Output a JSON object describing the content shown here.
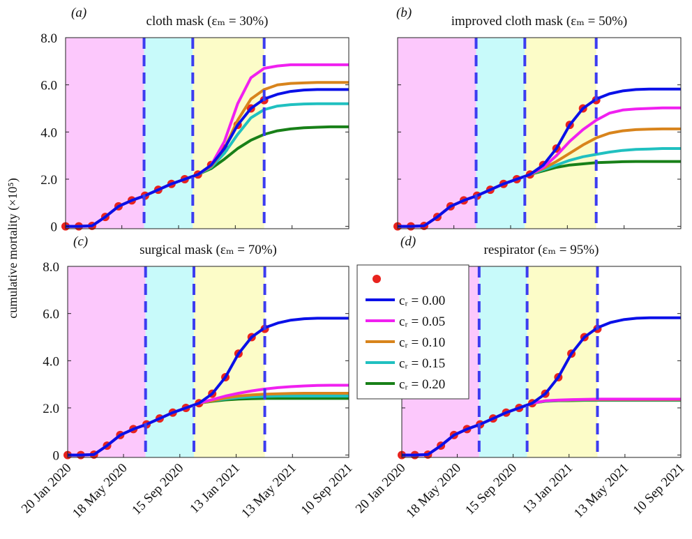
{
  "chart_data": [
    {
      "type": "line",
      "panel": "(a)",
      "title": "cloth mask (εₘ = 30%)",
      "y_label": "cumulative mortality (×10⁵)",
      "x": [
        "20 Jan 2020",
        "17 Feb 2020",
        "16 Mar 2020",
        "13 Apr 2020",
        "11 May 2020",
        "8 Jun 2020",
        "6 Jul 2020",
        "3 Aug 2020",
        "31 Aug 2020",
        "28 Sep 2020",
        "26 Oct 2020",
        "23 Nov 2020",
        "21 Dec 2020",
        "18 Jan 2021",
        "15 Feb 2021",
        "15 Mar 2021",
        "12 Apr 2021",
        "10 May 2021",
        "7 Jun 2021",
        "5 Jul 2021",
        "2 Aug 2021",
        "30 Aug 2021",
        "10 Sep 2021"
      ],
      "xlim": [
        "20 Jan 2020",
        "10 Sep 2021"
      ],
      "xticks": [
        "20 Jan 2020",
        "18 May 2020",
        "15 Sep 2020",
        "13 Jan 2021",
        "13 May 2021",
        "10 Sep 2021"
      ],
      "xtick_labels": false,
      "ylim": [
        -0.1,
        8
      ],
      "yticks": [
        0,
        {
          "value": 2,
          "label": "2.0"
        },
        {
          "value": 4,
          "label": "4.0"
        },
        {
          "value": 6,
          "label": "6.0"
        },
        {
          "value": 8,
          "label": "8.0"
        }
      ],
      "ytick_labels": true,
      "phase_boundaries": [
        "4 Jul 2020",
        "15 Oct 2020",
        "15 Mar 2021"
      ],
      "phase_colors": [
        "#fcc8fc",
        "#c8fafa",
        "#fcfcc8"
      ],
      "boundary_color": "#3c3cf0",
      "series": [
        {
          "color": "#e8231e",
          "style": "markers",
          "values": [
            0,
            0,
            0.02,
            0.4,
            0.85,
            1.1,
            1.3,
            1.55,
            1.8,
            2.0,
            2.2,
            2.6,
            3.3,
            4.3,
            5.0,
            5.35,
            null,
            null,
            null,
            null,
            null,
            null,
            null
          ]
        },
        {
          "color": "#0a10e8",
          "style": "line",
          "values": [
            0,
            0,
            0.02,
            0.4,
            0.85,
            1.1,
            1.3,
            1.55,
            1.8,
            2.0,
            2.2,
            2.6,
            3.3,
            4.3,
            5.0,
            5.4,
            5.6,
            5.72,
            5.78,
            5.8,
            5.8,
            5.8,
            5.8
          ]
        },
        {
          "color": "#f020f0",
          "style": "line",
          "values": [
            0,
            0,
            0.02,
            0.4,
            0.85,
            1.1,
            1.3,
            1.55,
            1.8,
            2.0,
            2.2,
            2.6,
            3.6,
            5.2,
            6.3,
            6.7,
            6.8,
            6.85,
            6.85,
            6.85,
            6.85,
            6.85,
            6.85
          ]
        },
        {
          "color": "#d8841c",
          "style": "line",
          "values": [
            0,
            0,
            0.02,
            0.4,
            0.85,
            1.1,
            1.3,
            1.55,
            1.8,
            2.0,
            2.2,
            2.55,
            3.3,
            4.5,
            5.4,
            5.8,
            6.0,
            6.06,
            6.08,
            6.1,
            6.1,
            6.1,
            6.1
          ]
        },
        {
          "color": "#20c0c0",
          "style": "line",
          "values": [
            0,
            0,
            0.02,
            0.4,
            0.85,
            1.1,
            1.3,
            1.55,
            1.8,
            2.0,
            2.2,
            2.5,
            3.1,
            3.9,
            4.6,
            4.95,
            5.1,
            5.16,
            5.19,
            5.2,
            5.2,
            5.2,
            5.2
          ]
        },
        {
          "color": "#188018",
          "style": "line",
          "values": [
            0,
            0,
            0.02,
            0.4,
            0.85,
            1.1,
            1.3,
            1.55,
            1.8,
            2.0,
            2.2,
            2.45,
            2.85,
            3.3,
            3.65,
            3.9,
            4.05,
            4.13,
            4.18,
            4.2,
            4.22,
            4.22,
            4.22
          ]
        }
      ]
    },
    {
      "type": "line",
      "panel": "(b)",
      "title": "improved cloth mask (εₘ = 50%)",
      "x": [
        "20 Jan 2020",
        "17 Feb 2020",
        "16 Mar 2020",
        "13 Apr 2020",
        "11 May 2020",
        "8 Jun 2020",
        "6 Jul 2020",
        "3 Aug 2020",
        "31 Aug 2020",
        "28 Sep 2020",
        "26 Oct 2020",
        "23 Nov 2020",
        "21 Dec 2020",
        "18 Jan 2021",
        "15 Feb 2021",
        "15 Mar 2021",
        "12 Apr 2021",
        "10 May 2021",
        "7 Jun 2021",
        "5 Jul 2021",
        "2 Aug 2021",
        "30 Aug 2021",
        "10 Sep 2021"
      ],
      "xlim": [
        "20 Jan 2020",
        "10 Sep 2021"
      ],
      "xticks": [
        "20 Jan 2020",
        "18 May 2020",
        "15 Sep 2020",
        "13 Jan 2021",
        "13 May 2021",
        "10 Sep 2021"
      ],
      "xtick_labels": false,
      "ylim": [
        -0.1,
        8
      ],
      "yticks": [
        0,
        {
          "value": 2,
          "label": "2.0"
        },
        {
          "value": 4,
          "label": "4.0"
        },
        {
          "value": 6,
          "label": "6.0"
        },
        {
          "value": 8,
          "label": "8.0"
        }
      ],
      "ytick_labels": false,
      "phase_boundaries": [
        "4 Jul 2020",
        "15 Oct 2020",
        "15 Mar 2021"
      ],
      "phase_colors": [
        "#fcc8fc",
        "#c8fafa",
        "#fcfcc8"
      ],
      "boundary_color": "#3c3cf0",
      "series": [
        {
          "color": "#e8231e",
          "style": "markers",
          "values": [
            0,
            0,
            0.02,
            0.4,
            0.85,
            1.1,
            1.3,
            1.55,
            1.8,
            2.0,
            2.2,
            2.6,
            3.3,
            4.3,
            5.0,
            5.35,
            null,
            null,
            null,
            null,
            null,
            null,
            null
          ]
        },
        {
          "color": "#0a10e8",
          "style": "line",
          "values": [
            0,
            0,
            0.02,
            0.4,
            0.85,
            1.1,
            1.3,
            1.55,
            1.8,
            2.0,
            2.2,
            2.6,
            3.3,
            4.3,
            5.0,
            5.4,
            5.62,
            5.74,
            5.8,
            5.82,
            5.82,
            5.82,
            5.82
          ]
        },
        {
          "color": "#f020f0",
          "style": "line",
          "values": [
            0,
            0,
            0.02,
            0.4,
            0.85,
            1.1,
            1.3,
            1.55,
            1.8,
            2.0,
            2.2,
            2.5,
            3.0,
            3.6,
            4.1,
            4.5,
            4.8,
            4.93,
            4.98,
            5.0,
            5.02,
            5.02,
            5.02
          ]
        },
        {
          "color": "#d8841c",
          "style": "line",
          "values": [
            0,
            0,
            0.02,
            0.4,
            0.85,
            1.1,
            1.3,
            1.55,
            1.8,
            2.0,
            2.2,
            2.45,
            2.75,
            3.1,
            3.45,
            3.75,
            3.95,
            4.05,
            4.1,
            4.12,
            4.13,
            4.13,
            4.13
          ]
        },
        {
          "color": "#20c0c0",
          "style": "line",
          "values": [
            0,
            0,
            0.02,
            0.4,
            0.85,
            1.1,
            1.3,
            1.55,
            1.8,
            2.0,
            2.2,
            2.4,
            2.6,
            2.8,
            2.95,
            3.05,
            3.15,
            3.22,
            3.26,
            3.28,
            3.3,
            3.3,
            3.3
          ]
        },
        {
          "color": "#188018",
          "style": "line",
          "values": [
            0,
            0,
            0.02,
            0.4,
            0.85,
            1.1,
            1.3,
            1.55,
            1.8,
            2.0,
            2.2,
            2.35,
            2.5,
            2.6,
            2.65,
            2.7,
            2.72,
            2.74,
            2.75,
            2.75,
            2.75,
            2.75,
            2.75
          ]
        }
      ]
    },
    {
      "type": "line",
      "panel": "(c)",
      "title": "surgical mask (εₘ = 70%)",
      "x": [
        "20 Jan 2020",
        "17 Feb 2020",
        "16 Mar 2020",
        "13 Apr 2020",
        "11 May 2020",
        "8 Jun 2020",
        "6 Jul 2020",
        "3 Aug 2020",
        "31 Aug 2020",
        "28 Sep 2020",
        "26 Oct 2020",
        "23 Nov 2020",
        "21 Dec 2020",
        "18 Jan 2021",
        "15 Feb 2021",
        "15 Mar 2021",
        "12 Apr 2021",
        "10 May 2021",
        "7 Jun 2021",
        "5 Jul 2021",
        "2 Aug 2021",
        "30 Aug 2021",
        "10 Sep 2021"
      ],
      "xlim": [
        "20 Jan 2020",
        "10 Sep 2021"
      ],
      "xticks": [
        "20 Jan 2020",
        "18 May 2020",
        "15 Sep 2020",
        "13 Jan 2021",
        "13 May 2021",
        "10 Sep 2021"
      ],
      "xtick_labels": true,
      "ylim": [
        -0.1,
        8
      ],
      "yticks": [
        0,
        {
          "value": 2,
          "label": "2.0"
        },
        {
          "value": 4,
          "label": "4.0"
        },
        {
          "value": 6,
          "label": "6.0"
        },
        {
          "value": 8,
          "label": "8.0"
        }
      ],
      "ytick_labels": true,
      "phase_boundaries": [
        "4 Jul 2020",
        "15 Oct 2020",
        "15 Mar 2021"
      ],
      "phase_colors": [
        "#fcc8fc",
        "#c8fafa",
        "#fcfcc8"
      ],
      "boundary_color": "#3c3cf0",
      "series": [
        {
          "color": "#e8231e",
          "style": "markers",
          "values": [
            0,
            0,
            0.02,
            0.4,
            0.85,
            1.1,
            1.3,
            1.55,
            1.8,
            2.0,
            2.2,
            2.6,
            3.3,
            4.3,
            5.0,
            5.35,
            null,
            null,
            null,
            null,
            null,
            null,
            null
          ]
        },
        {
          "color": "#0a10e8",
          "style": "line",
          "values": [
            0,
            0,
            0.02,
            0.4,
            0.85,
            1.1,
            1.3,
            1.55,
            1.8,
            2.0,
            2.2,
            2.6,
            3.3,
            4.3,
            5.0,
            5.4,
            5.6,
            5.72,
            5.78,
            5.8,
            5.8,
            5.8,
            5.8
          ]
        },
        {
          "color": "#f020f0",
          "style": "line",
          "values": [
            0,
            0,
            0.02,
            0.4,
            0.85,
            1.1,
            1.3,
            1.55,
            1.8,
            2.0,
            2.2,
            2.35,
            2.5,
            2.62,
            2.72,
            2.8,
            2.86,
            2.9,
            2.93,
            2.95,
            2.96,
            2.96,
            2.96
          ]
        },
        {
          "color": "#d8841c",
          "style": "line",
          "values": [
            0,
            0,
            0.02,
            0.4,
            0.85,
            1.1,
            1.3,
            1.55,
            1.8,
            2.0,
            2.2,
            2.3,
            2.42,
            2.5,
            2.55,
            2.58,
            2.6,
            2.61,
            2.62,
            2.62,
            2.62,
            2.62,
            2.62
          ]
        },
        {
          "color": "#20c0c0",
          "style": "line",
          "values": [
            0,
            0,
            0.02,
            0.4,
            0.85,
            1.1,
            1.3,
            1.55,
            1.8,
            2.0,
            2.2,
            2.3,
            2.38,
            2.44,
            2.47,
            2.49,
            2.5,
            2.5,
            2.5,
            2.5,
            2.5,
            2.5,
            2.5
          ]
        },
        {
          "color": "#188018",
          "style": "line",
          "values": [
            0,
            0,
            0.02,
            0.4,
            0.85,
            1.1,
            1.3,
            1.55,
            1.8,
            2.0,
            2.2,
            2.28,
            2.34,
            2.37,
            2.39,
            2.4,
            2.4,
            2.4,
            2.4,
            2.4,
            2.4,
            2.4,
            2.4
          ]
        }
      ]
    },
    {
      "type": "line",
      "panel": "(d)",
      "title": "respirator (εₘ = 95%)",
      "legend": "upper left",
      "x": [
        "20 Jan 2020",
        "17 Feb 2020",
        "16 Mar 2020",
        "13 Apr 2020",
        "11 May 2020",
        "8 Jun 2020",
        "6 Jul 2020",
        "3 Aug 2020",
        "31 Aug 2020",
        "28 Sep 2020",
        "26 Oct 2020",
        "23 Nov 2020",
        "21 Dec 2020",
        "18 Jan 2021",
        "15 Feb 2021",
        "15 Mar 2021",
        "12 Apr 2021",
        "10 May 2021",
        "7 Jun 2021",
        "5 Jul 2021",
        "2 Aug 2021",
        "30 Aug 2021",
        "10 Sep 2021"
      ],
      "xlim": [
        "20 Jan 2020",
        "10 Sep 2021"
      ],
      "xticks": [
        "20 Jan 2020",
        "18 May 2020",
        "15 Sep 2020",
        "13 Jan 2021",
        "13 May 2021",
        "10 Sep 2021"
      ],
      "xtick_labels": true,
      "ylim": [
        -0.1,
        8
      ],
      "yticks": [
        0,
        {
          "value": 2,
          "label": "2.0"
        },
        {
          "value": 4,
          "label": "4.0"
        },
        {
          "value": 6,
          "label": "6.0"
        },
        {
          "value": 8,
          "label": "8.0"
        }
      ],
      "ytick_labels": false,
      "phase_boundaries": [
        "4 Jul 2020",
        "15 Oct 2020",
        "15 Mar 2021"
      ],
      "phase_colors": [
        "#fcc8fc",
        "#c8fafa",
        "#fcfcc8"
      ],
      "boundary_color": "#3c3cf0",
      "series": [
        {
          "color": "#e8231e",
          "style": "markers",
          "values": [
            0,
            0,
            0.02,
            0.4,
            0.85,
            1.1,
            1.3,
            1.55,
            1.8,
            2.0,
            2.2,
            2.6,
            3.3,
            4.3,
            5.0,
            5.35,
            null,
            null,
            null,
            null,
            null,
            null,
            null
          ]
        },
        {
          "name": "cᵣ = 0.00",
          "color": "#0a10e8",
          "style": "line",
          "values": [
            0,
            0,
            0.02,
            0.4,
            0.85,
            1.1,
            1.3,
            1.55,
            1.8,
            2.0,
            2.2,
            2.6,
            3.3,
            4.3,
            5.0,
            5.4,
            5.62,
            5.74,
            5.8,
            5.82,
            5.82,
            5.82,
            5.82
          ]
        },
        {
          "name": "cᵣ = 0.05",
          "color": "#f020f0",
          "style": "line",
          "values": [
            0,
            0,
            0.02,
            0.4,
            0.85,
            1.1,
            1.3,
            1.55,
            1.8,
            2.0,
            2.2,
            2.3,
            2.33,
            2.35,
            2.36,
            2.37,
            2.37,
            2.37,
            2.37,
            2.37,
            2.37,
            2.37,
            2.37
          ]
        },
        {
          "name": "cᵣ = 0.10",
          "color": "#d8841c",
          "style": "line",
          "values": [
            0,
            0,
            0.02,
            0.4,
            0.85,
            1.1,
            1.3,
            1.55,
            1.8,
            2.0,
            2.2,
            2.3,
            2.32,
            2.34,
            2.35,
            2.35,
            2.35,
            2.35,
            2.35,
            2.35,
            2.35,
            2.35,
            2.35
          ]
        },
        {
          "name": "cᵣ = 0.15",
          "color": "#20c0c0",
          "style": "line",
          "values": [
            0,
            0,
            0.02,
            0.4,
            0.85,
            1.1,
            1.3,
            1.55,
            1.8,
            2.0,
            2.2,
            2.29,
            2.31,
            2.33,
            2.34,
            2.34,
            2.34,
            2.34,
            2.34,
            2.34,
            2.34,
            2.34,
            2.34
          ]
        },
        {
          "name": "cᵣ = 0.20",
          "color": "#188018",
          "style": "line",
          "values": [
            0,
            0,
            0.02,
            0.4,
            0.85,
            1.1,
            1.3,
            1.55,
            1.8,
            2.0,
            2.2,
            2.28,
            2.3,
            2.31,
            2.32,
            2.32,
            2.32,
            2.32,
            2.32,
            2.32,
            2.32,
            2.32,
            2.32
          ]
        }
      ]
    }
  ]
}
